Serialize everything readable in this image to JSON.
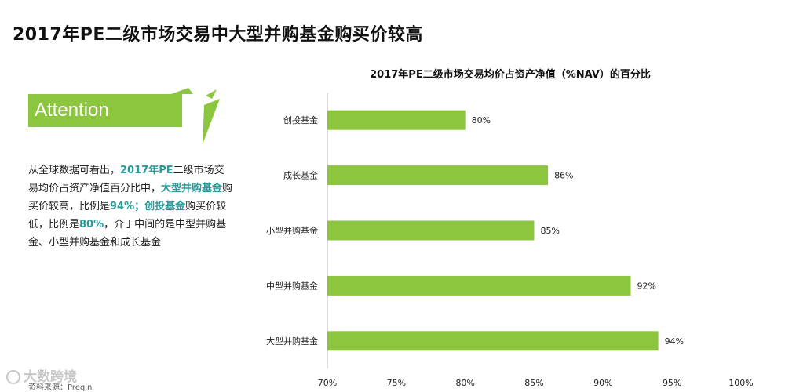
{
  "page": {
    "title": "2017年PE二级市场交易中大型并购基金购买价较高"
  },
  "attention": {
    "label": "Attention",
    "color": "#8cc63f"
  },
  "description": {
    "p1": "从全球数据可看出，",
    "h1": "2017年PE",
    "p2": "二级市场交易均价占资产净值百分比中，",
    "h2": "大型并购基金",
    "p3": "购买价较高，比例是",
    "h3": "94%；创投基金",
    "p4": "购买价较低，比例是",
    "h4": "80%",
    "p5": "，介于中间的是中型并购基金、小型并购基金和成长基金",
    "highlight_color": "#2b9a9a"
  },
  "watermark": {
    "text": "大数跨境"
  },
  "source": {
    "text": "资料来源：Preqin"
  },
  "chart_data": {
    "type": "bar",
    "orientation": "horizontal",
    "title": "2017年PE二级市场交易均价占资产净值（%NAV）的百分比",
    "categories": [
      "创投基金",
      "成长基金",
      "小型并购基金",
      "中型并购基金",
      "大型并购基金"
    ],
    "values": [
      80,
      86,
      85,
      92,
      94
    ],
    "data_labels": [
      "80%",
      "86%",
      "85%",
      "92%",
      "94%"
    ],
    "xlim": [
      70,
      100
    ],
    "x_ticks": [
      "70%",
      "75%",
      "80%",
      "85%",
      "90%",
      "95%",
      "100%"
    ],
    "x_tick_values": [
      70,
      75,
      80,
      85,
      90,
      95,
      100
    ],
    "bar_color": "#8cc63f",
    "grid": false,
    "legend": "none"
  }
}
